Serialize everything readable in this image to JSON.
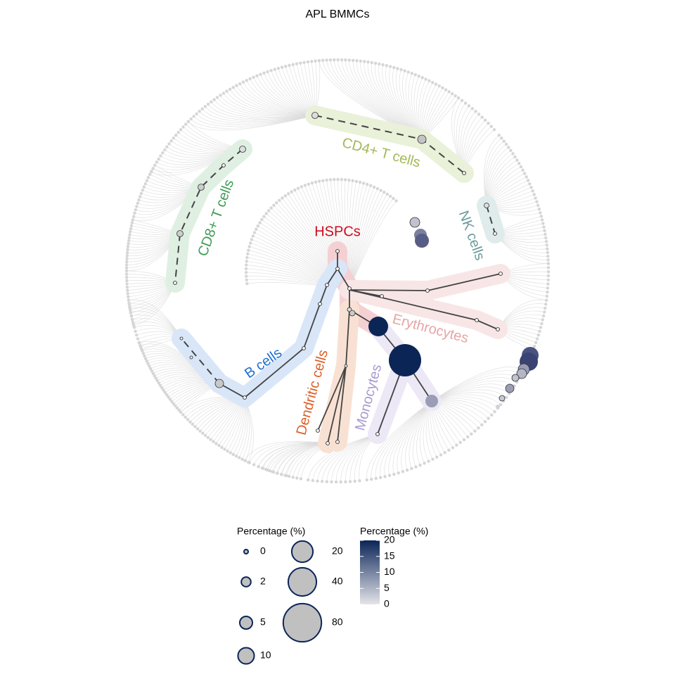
{
  "title": "APL BMMCs",
  "clusters": [
    {
      "label": "HSPCs",
      "color": "#cc0c1f"
    },
    {
      "label": "CD4+ T cells",
      "color": "#a3b956"
    },
    {
      "label": "CD8+ T cells",
      "color": "#3e9c55"
    },
    {
      "label": "NK cells",
      "color": "#6b9a9a"
    },
    {
      "label": "Erythrocytes",
      "color": "#e6a5a5"
    },
    {
      "label": "B cells",
      "color": "#1f6fd0"
    },
    {
      "label": "Dendritic cells",
      "color": "#d9622b"
    },
    {
      "label": "Monocytes",
      "color": "#a99ad0"
    }
  ],
  "size_legend": {
    "title": "Percentage (%)",
    "values": [
      0,
      2,
      5,
      10,
      20,
      40,
      80
    ]
  },
  "color_legend": {
    "title": "Percentage (%)",
    "range": [
      0,
      20
    ],
    "ticks": [
      0,
      5,
      10,
      15,
      20
    ],
    "colors": [
      "#e4e4ea",
      "#0b2557"
    ]
  }
}
